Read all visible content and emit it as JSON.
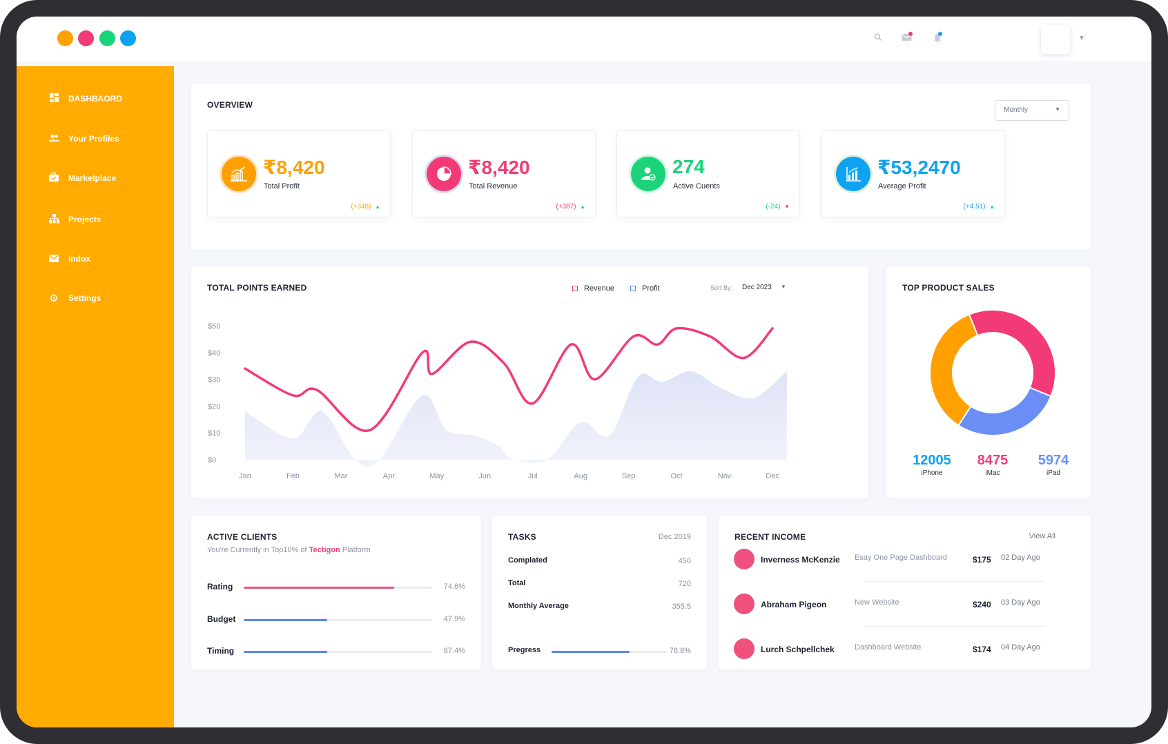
{
  "colors": {
    "sidebar": "#ffab00",
    "accent_orange": "#ffa000",
    "accent_pink": "#f23b76",
    "accent_green": "#1bd47a",
    "accent_blue": "#0da3f0",
    "chart_profit_fill": "#e6e9f8"
  },
  "window_dots": [
    "#ffa000",
    "#f23b76",
    "#1bd47a",
    "#0da3f0"
  ],
  "topbar": {
    "icons": [
      "search-icon",
      "mail-icon",
      "bell-icon"
    ]
  },
  "sidebar": {
    "items": [
      {
        "label": "DASHBAORD",
        "icon": "dashboard-icon"
      },
      {
        "label": "Your Profiles",
        "icon": "users-icon"
      },
      {
        "label": "Marketplace",
        "icon": "briefcase-icon"
      },
      {
        "label": "Projects",
        "icon": "sitemap-icon"
      },
      {
        "label": "Indox",
        "icon": "envelope-icon"
      },
      {
        "label": "Settings",
        "icon": "gear-icon"
      }
    ]
  },
  "overview": {
    "title": "OVERVIEW",
    "period": "Monthly",
    "stats": [
      {
        "value": "₹8,420",
        "label": "Total Profit",
        "delta": "(+348)",
        "trend": "up",
        "color": "#ffa000",
        "icon": "bar-chart-icon"
      },
      {
        "value": "₹8,420",
        "label": "Total Revenue",
        "delta": "(+387)",
        "trend": "up",
        "color": "#f23b76",
        "icon": "pie-chart-icon"
      },
      {
        "value": "274",
        "label": "Active Cuents",
        "delta": "(-24)",
        "trend": "down",
        "color": "#1bd47a",
        "icon": "user-check-icon"
      },
      {
        "value": "₹53,2470",
        "label": "Average Profit",
        "delta": "(+4.51)",
        "trend": "up",
        "color": "#0da3f0",
        "icon": "growth-chart-icon"
      }
    ]
  },
  "points_chart": {
    "title": "TOTAL POINTS EARNED",
    "sort_label": "Sort By:",
    "sort_value": "Dec 2023"
  },
  "chart_data": [
    {
      "type": "line",
      "title": "TOTAL POINTS EARNED",
      "x": [
        "Jan",
        "Feb",
        "Mar",
        "Apr",
        "May",
        "Jun",
        "Jul",
        "Aug",
        "Sep",
        "Oct",
        "Nov",
        "Dec"
      ],
      "yticks": [
        "$0",
        "$10",
        "$20",
        "$30",
        "$40",
        "$50"
      ],
      "ylim": [
        0,
        50
      ],
      "legend": "top",
      "series": [
        {
          "name": "Revenue",
          "type": "line",
          "color": "#f23b76",
          "points": [
            [
              0,
              34
            ],
            [
              1,
              24
            ],
            [
              1.5,
              26
            ],
            [
              2.6,
              11
            ],
            [
              3.7,
              40
            ],
            [
              3.9,
              32
            ],
            [
              4.7,
              44
            ],
            [
              5.4,
              36
            ],
            [
              6,
              21
            ],
            [
              6.8,
              43
            ],
            [
              7.3,
              30
            ],
            [
              8.1,
              46
            ],
            [
              8.6,
              43
            ],
            [
              9,
              49
            ],
            [
              9.7,
              46
            ],
            [
              10.4,
              38
            ],
            [
              11,
              49
            ]
          ]
        },
        {
          "name": "Profit",
          "type": "area",
          "color": "#e6e9f8",
          "points": [
            [
              0,
              18
            ],
            [
              1,
              8
            ],
            [
              1.6,
              18
            ],
            [
              2.3,
              0
            ],
            [
              2.8,
              0
            ],
            [
              3.7,
              24
            ],
            [
              4.2,
              11
            ],
            [
              4.8,
              9
            ],
            [
              5.3,
              5
            ],
            [
              5.6,
              0
            ],
            [
              6.3,
              0
            ],
            [
              7,
              14
            ],
            [
              7.6,
              9
            ],
            [
              8.2,
              31
            ],
            [
              8.7,
              29
            ],
            [
              9.3,
              33
            ],
            [
              9.9,
              27
            ],
            [
              10.6,
              23
            ],
            [
              11.3,
              33
            ]
          ]
        }
      ]
    },
    {
      "type": "pie",
      "title": "TOP PRODUCT SALES",
      "labels": [
        "iPhone",
        "iMac",
        "iPad"
      ],
      "values": [
        12005,
        8475,
        5974
      ],
      "colors": [
        "#0da3f0",
        "#f23b76",
        "#6a8ef5"
      ],
      "ring_colors": {
        "iMac": "#f23b76",
        "iPad": "#6a8ef5",
        "iPhone": "#ffa000"
      }
    }
  ],
  "product_sales": {
    "title": "TOP PRODUCT SALES",
    "items": [
      {
        "value": "12005",
        "label": "iPhone",
        "color": "#0da3f0"
      },
      {
        "value": "8475",
        "label": "iMac",
        "color": "#f23b76"
      },
      {
        "value": "5974",
        "label": "iPad",
        "color": "#6a8ef5"
      }
    ]
  },
  "active_clients": {
    "title": "ACTIVE CLIENTS",
    "subtitle_pre": "You're Currently in Top10% of",
    "subtitle_brand": "Tectigon",
    "subtitle_post": "Platform",
    "rows": [
      {
        "label": "Rating",
        "value": "74.6%",
        "fraction": 0.8,
        "color": "#f0507d"
      },
      {
        "label": "Budget",
        "value": "47.9%",
        "fraction": 0.443,
        "color": "#5a86ee"
      },
      {
        "label": "Timing",
        "value": "87.4%",
        "fraction": 0.443,
        "color": "#5a86ee"
      }
    ]
  },
  "tasks": {
    "title": "TASKS",
    "date": "Dec 2019",
    "rows": [
      {
        "label": "Complated",
        "value": "450"
      },
      {
        "label": "Total",
        "value": "720"
      },
      {
        "label": "Monthly Average",
        "value": "355.5"
      }
    ],
    "progress": {
      "label": "Pregress",
      "value": "76.8%",
      "fraction": 0.67
    }
  },
  "recent_income": {
    "title": "RECENT INCOME",
    "view_all": "View All",
    "rows": [
      {
        "name": "Inverness McKenzie",
        "project": "Esay One Page Dashboard",
        "amount": "$175",
        "ago": "02 Day Ago"
      },
      {
        "name": "Abraham Pigeon",
        "project": "New Website",
        "amount": "$240",
        "ago": "03 Day Ago"
      },
      {
        "name": "Lurch Schpellchek",
        "project": "Dashboard Website",
        "amount": "$174",
        "ago": "04 Day Ago"
      }
    ]
  }
}
